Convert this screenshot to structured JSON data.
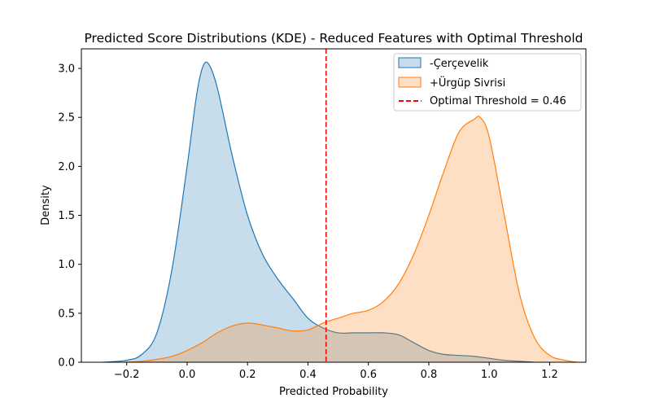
{
  "chart_data": {
    "type": "area",
    "title": "Predicted Score Distributions (KDE) - Reduced Features with Optimal Threshold",
    "xlabel": "Predicted Probability",
    "ylabel": "Density",
    "xlim": [
      -0.35,
      1.32
    ],
    "ylim": [
      0,
      3.2
    ],
    "xticks": [
      -0.2,
      0.0,
      0.2,
      0.4,
      0.6,
      0.8,
      1.0,
      1.2
    ],
    "xtick_labels": [
      "−0.2",
      "0.0",
      "0.2",
      "0.4",
      "0.6",
      "0.8",
      "1.0",
      "1.2"
    ],
    "yticks": [
      0.0,
      0.5,
      1.0,
      1.5,
      2.0,
      2.5,
      3.0
    ],
    "ytick_labels": [
      "0.0",
      "0.5",
      "1.0",
      "1.5",
      "2.0",
      "2.5",
      "3.0"
    ],
    "grid": false,
    "legend_position": "top-right",
    "series": [
      {
        "name": "-Çerçevelik",
        "color": "#1f77b4",
        "x": [
          -0.28,
          -0.2,
          -0.15,
          -0.1,
          -0.05,
          0.0,
          0.03,
          0.05,
          0.07,
          0.1,
          0.15,
          0.2,
          0.25,
          0.3,
          0.35,
          0.4,
          0.45,
          0.5,
          0.55,
          0.6,
          0.65,
          0.7,
          0.75,
          0.8,
          0.85,
          0.9,
          0.95,
          1.0,
          1.05,
          1.1,
          1.15
        ],
        "y": [
          0.0,
          0.02,
          0.08,
          0.3,
          0.95,
          2.0,
          2.7,
          3.0,
          3.05,
          2.8,
          2.1,
          1.5,
          1.1,
          0.85,
          0.65,
          0.45,
          0.35,
          0.3,
          0.3,
          0.3,
          0.3,
          0.28,
          0.2,
          0.12,
          0.08,
          0.07,
          0.06,
          0.04,
          0.02,
          0.01,
          0.0
        ]
      },
      {
        "name": "+Ürgüp Sivrisi",
        "color": "#ff7f0e",
        "x": [
          -0.2,
          -0.15,
          -0.1,
          -0.05,
          0.0,
          0.05,
          0.1,
          0.15,
          0.2,
          0.25,
          0.3,
          0.35,
          0.4,
          0.45,
          0.5,
          0.55,
          0.6,
          0.65,
          0.7,
          0.75,
          0.8,
          0.85,
          0.9,
          0.95,
          0.97,
          1.0,
          1.05,
          1.1,
          1.15,
          1.2,
          1.25,
          1.29
        ],
        "y": [
          0.0,
          0.01,
          0.03,
          0.06,
          0.12,
          0.2,
          0.3,
          0.37,
          0.4,
          0.38,
          0.35,
          0.32,
          0.33,
          0.4,
          0.45,
          0.5,
          0.53,
          0.62,
          0.8,
          1.1,
          1.5,
          1.95,
          2.35,
          2.48,
          2.5,
          2.3,
          1.5,
          0.7,
          0.25,
          0.07,
          0.02,
          0.0
        ]
      }
    ],
    "threshold": {
      "label": "Optimal Threshold = 0.46",
      "value": 0.46,
      "color": "#ff0000"
    }
  }
}
